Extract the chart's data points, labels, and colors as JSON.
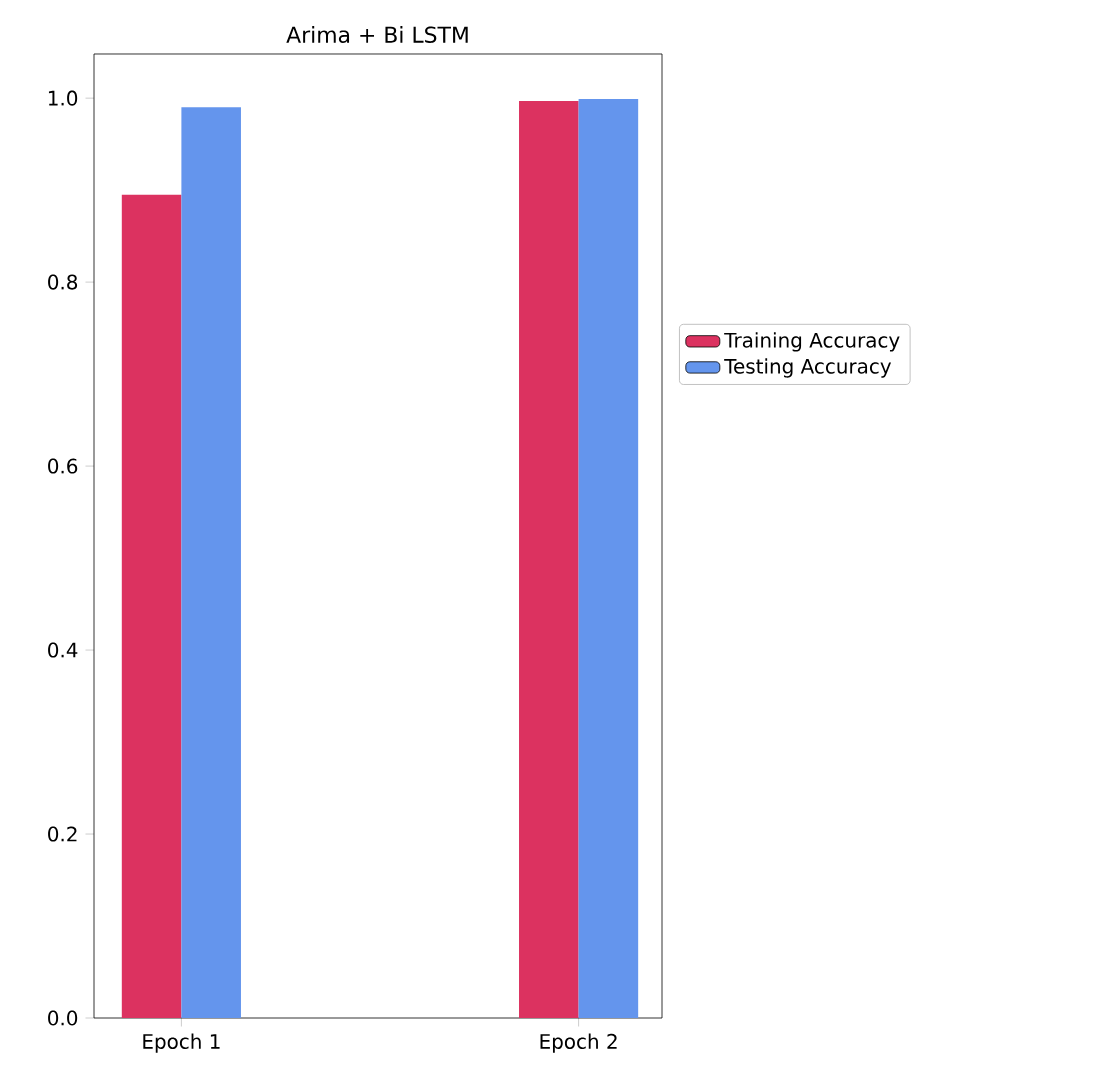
{
  "chart_data": {
    "type": "bar",
    "title": "Arima + Bi LSTM",
    "categories": [
      "Epoch 1",
      "Epoch 2"
    ],
    "series": [
      {
        "name": "Training Accuracy",
        "color": "#dc3260",
        "values": [
          0.895,
          0.997
        ]
      },
      {
        "name": "Testing Accuracy",
        "color": "#6495ed",
        "values": [
          0.99,
          0.999
        ]
      }
    ],
    "ylim": [
      0,
      1.048
    ],
    "yticks": [
      {
        "value": 0,
        "label": "0.0"
      },
      {
        "value": 0.2,
        "label": "0.2"
      },
      {
        "value": 0.4,
        "label": "0.4"
      },
      {
        "value": 0.6,
        "label": "0.6"
      },
      {
        "value": 0.8,
        "label": "0.8"
      },
      {
        "value": 1.0,
        "label": "1.0"
      }
    ],
    "grid": false,
    "legend": "right"
  }
}
